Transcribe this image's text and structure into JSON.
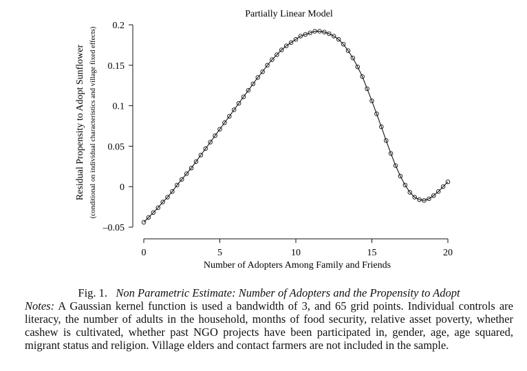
{
  "chart_data": {
    "type": "line",
    "title": "Partially Linear Model",
    "xlabel": "Number of Adopters Among Family and Friends",
    "ylabel": "Residual Propensity to Adopt Sunflower",
    "ylabel_sub": "(conditional on individual characteristics and village fixed effects)",
    "xlim": [
      0,
      20
    ],
    "ylim": [
      -0.05,
      0.2
    ],
    "xticks": [
      0,
      5,
      10,
      15,
      20
    ],
    "yticks": [
      -0.05,
      0,
      0.05,
      0.1,
      0.15,
      0.2
    ],
    "xtick_labels": [
      "0",
      "5",
      "10",
      "15",
      "20"
    ],
    "ytick_labels": [
      "–0.05",
      "0",
      "0.05",
      "0.1",
      "0.15",
      "0.2"
    ],
    "grid": false,
    "series": [
      {
        "marker": "open-circle",
        "points": [
          [
            0,
            -0.044
          ],
          [
            0.3125,
            -0.038
          ],
          [
            0.625,
            -0.032
          ],
          [
            0.9375,
            -0.026
          ],
          [
            1.25,
            -0.019
          ],
          [
            1.5625,
            -0.013
          ],
          [
            1.875,
            -0.006
          ],
          [
            2.1875,
            0.002
          ],
          [
            2.5,
            0.009
          ],
          [
            2.8125,
            0.016
          ],
          [
            3.125,
            0.023
          ],
          [
            3.4375,
            0.031
          ],
          [
            3.75,
            0.039
          ],
          [
            4.0625,
            0.047
          ],
          [
            4.375,
            0.055
          ],
          [
            4.6875,
            0.063
          ],
          [
            5,
            0.071
          ],
          [
            5.3125,
            0.079
          ],
          [
            5.625,
            0.087
          ],
          [
            5.9375,
            0.095
          ],
          [
            6.25,
            0.103
          ],
          [
            6.5625,
            0.111
          ],
          [
            6.875,
            0.119
          ],
          [
            7.1875,
            0.127
          ],
          [
            7.5,
            0.135
          ],
          [
            7.8125,
            0.142
          ],
          [
            8.125,
            0.15
          ],
          [
            8.4375,
            0.157
          ],
          [
            8.75,
            0.163
          ],
          [
            9.0625,
            0.169
          ],
          [
            9.375,
            0.174
          ],
          [
            9.6875,
            0.178
          ],
          [
            10,
            0.182
          ],
          [
            10.3125,
            0.186
          ],
          [
            10.625,
            0.188
          ],
          [
            10.9375,
            0.19
          ],
          [
            11.25,
            0.192
          ],
          [
            11.5625,
            0.192
          ],
          [
            11.875,
            0.191
          ],
          [
            12.1875,
            0.189
          ],
          [
            12.5,
            0.186
          ],
          [
            12.8125,
            0.182
          ],
          [
            13.125,
            0.176
          ],
          [
            13.4375,
            0.168
          ],
          [
            13.75,
            0.159
          ],
          [
            14.0625,
            0.148
          ],
          [
            14.375,
            0.136
          ],
          [
            14.6875,
            0.121
          ],
          [
            15,
            0.106
          ],
          [
            15.3125,
            0.09
          ],
          [
            15.625,
            0.074
          ],
          [
            15.9375,
            0.057
          ],
          [
            16.25,
            0.041
          ],
          [
            16.5625,
            0.026
          ],
          [
            16.875,
            0.013
          ],
          [
            17.1875,
            0.002
          ],
          [
            17.5,
            -0.007
          ],
          [
            17.8125,
            -0.013
          ],
          [
            18.125,
            -0.016
          ],
          [
            18.4375,
            -0.017
          ],
          [
            18.75,
            -0.015
          ],
          [
            19.0625,
            -0.011
          ],
          [
            19.375,
            -0.006
          ],
          [
            19.6875,
            0.0
          ],
          [
            20,
            0.006
          ]
        ]
      }
    ]
  },
  "caption": {
    "fig_label": "Fig. 1.",
    "fig_title": "Non Parametric Estimate: Number of Adopters and the Propensity to Adopt",
    "notes_label": "Notes:",
    "notes_text": "A Gaussian kernel function is used a bandwidth of 3, and 65 grid points. Individual controls are literacy, the number of adults in the household, months of food security, relative asset poverty, whether cashew is cultivated, whether past NGO projects have been participated in, gender, age, age squared, migrant status and religion. Village elders and contact farmers are not included in the sample."
  }
}
